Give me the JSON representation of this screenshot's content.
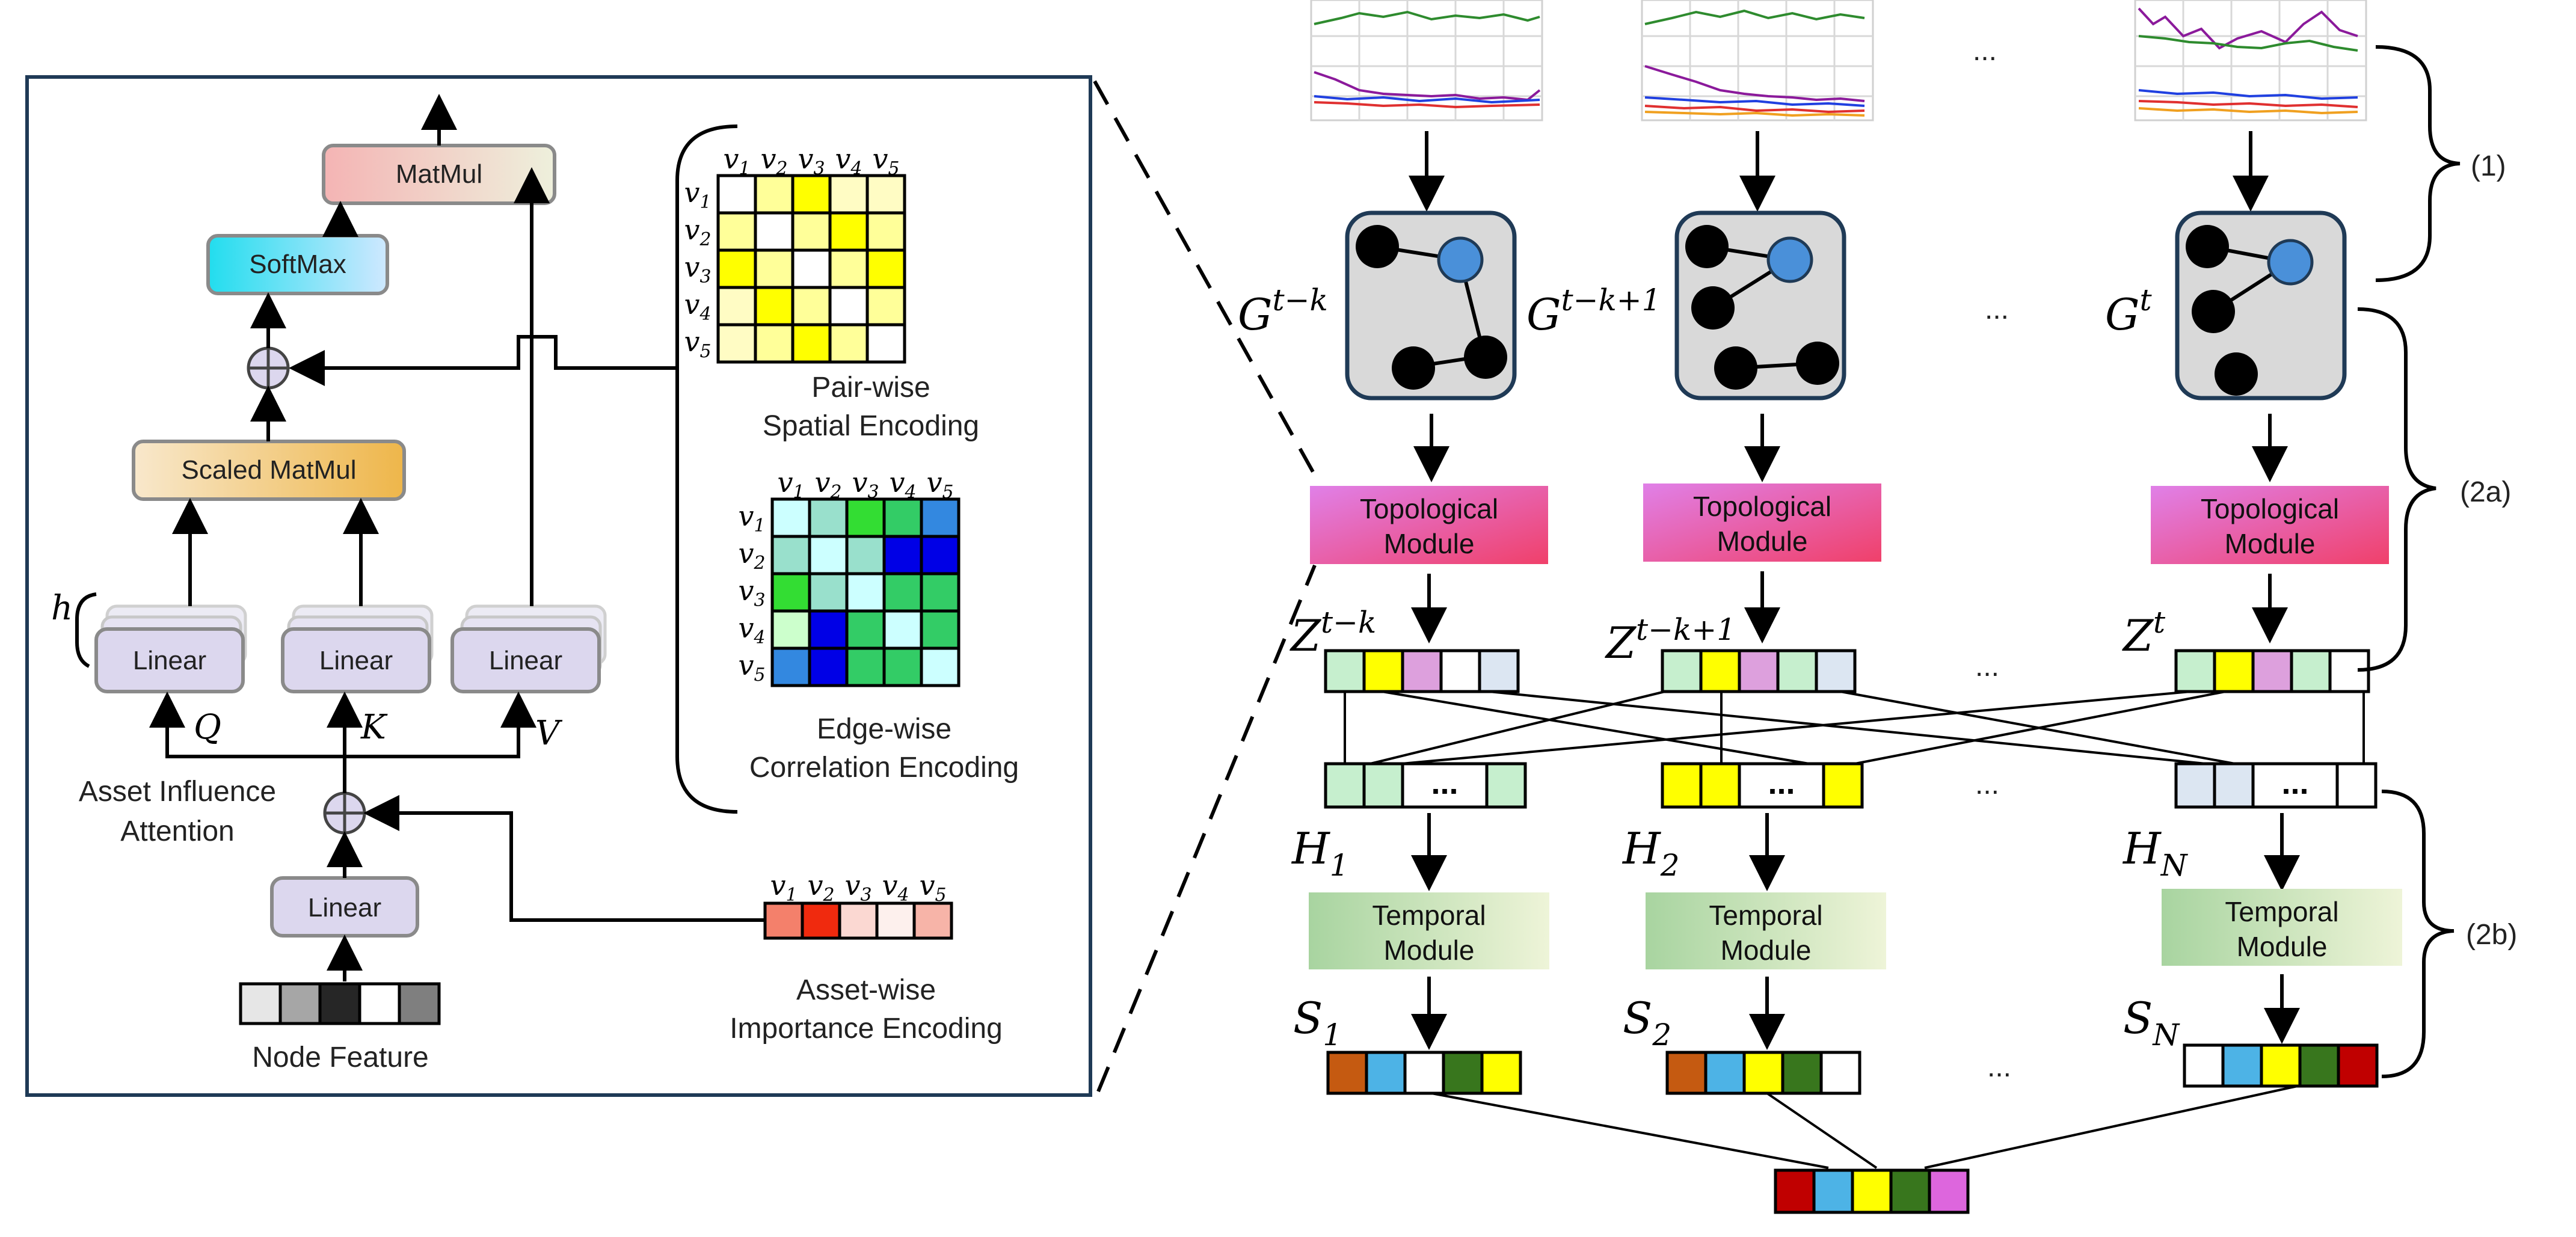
{
  "left_panel": {
    "blocks": {
      "matmul": "MatMul",
      "softmax": "SoftMax",
      "scaled_matmul": "Scaled MatMul",
      "linear": "Linear"
    },
    "symbols": {
      "h": "h",
      "q": "Q",
      "k": "K",
      "v": "V",
      "plus": "⊕"
    },
    "labels": {
      "attention_line1": "Asset Influence",
      "attention_line2": "Attention",
      "node_feature": "Node Feature",
      "pairwise_line1": "Pair-wise",
      "pairwise_line2": "Spatial Encoding",
      "edgewise_line1": "Edge-wise",
      "edgewise_line2": "Correlation Encoding",
      "assetwise_line1": "Asset-wise",
      "assetwise_line2": "Importance Encoding"
    },
    "node_labels": [
      "v1",
      "v2",
      "v3",
      "v4",
      "v5"
    ],
    "node_feature_colors": [
      "#e6e6e6",
      "#a6a6a6",
      "#262626",
      "#ffffff",
      "#7f7f7f"
    ],
    "asset_importance_colors": [
      "#f4806b",
      "#f02a0e",
      "#fbd8d2",
      "#fdf0ed",
      "#f7b4a8"
    ],
    "spatial_matrix": [
      [
        "#ffffff",
        "#ffff99",
        "#ffff00",
        "#fffcc4",
        "#fffcc4"
      ],
      [
        "#ffff99",
        "#ffffff",
        "#ffff99",
        "#ffff00",
        "#ffff99"
      ],
      [
        "#ffff00",
        "#ffff99",
        "#ffffff",
        "#ffff99",
        "#ffff00"
      ],
      [
        "#fffcc4",
        "#ffff00",
        "#ffff99",
        "#ffffff",
        "#ffff99"
      ],
      [
        "#fffcc4",
        "#ffff99",
        "#ffff00",
        "#ffff99",
        "#ffffff"
      ]
    ],
    "correlation_matrix": [
      [
        "#ccffff",
        "#99e0cc",
        "#33dd33",
        "#33cc66",
        "#3388e0"
      ],
      [
        "#99e0cc",
        "#ccffff",
        "#99e0cc",
        "#0000e6",
        "#0000e6"
      ],
      [
        "#33dd33",
        "#99e0cc",
        "#ccffff",
        "#33cc66",
        "#33cc66"
      ],
      [
        "#ccffcc",
        "#0000e6",
        "#33cc66",
        "#ccffff",
        "#33cc66"
      ],
      [
        "#3388e0",
        "#0000e6",
        "#33cc66",
        "#33cc66",
        "#ccffff"
      ]
    ]
  },
  "right_panel": {
    "graph_labels": [
      "G",
      "G",
      "G"
    ],
    "graph_sups": [
      "t−k",
      "t−k+1",
      "t"
    ],
    "z_labels": [
      "Z",
      "Z",
      "Z"
    ],
    "z_sups": [
      "t−k",
      "t−k+1",
      "t"
    ],
    "h_labels": [
      "H",
      "H",
      "H"
    ],
    "h_subs": [
      "1",
      "2",
      "N"
    ],
    "s_labels": [
      "S",
      "S",
      "S"
    ],
    "s_subs": [
      "1",
      "2",
      "N"
    ],
    "topological_line1": "Topological",
    "topological_line2": "Module",
    "temporal_line1": "Temporal",
    "temporal_line2": "Module",
    "ellipsis": "...",
    "cell_ellipsis": "...",
    "brackets": [
      "(1)",
      "(2a)",
      "(2b)"
    ],
    "z_vectors": [
      [
        "#c6efce",
        "#ffff00",
        "#dda0dd",
        "#ffffff",
        "#dce6f2"
      ],
      [
        "#c6efce",
        "#ffff00",
        "#dda0dd",
        "#c6efce",
        "#dce6f2"
      ],
      [
        "#c6efce",
        "#ffff00",
        "#dda0dd",
        "#c6efce",
        "#ffffff"
      ]
    ],
    "h_vectors": [
      [
        "#c6efce",
        "#c6efce",
        "#c6efce"
      ],
      [
        "#ffff00",
        "#ffff00",
        "#ffff00"
      ],
      [
        "#dce6f2",
        "#dce6f2",
        "#ffffff"
      ]
    ],
    "s_vectors": [
      [
        "#c55a11",
        "#4db3e6",
        "#ffffff",
        "#38761d",
        "#ffff00"
      ],
      [
        "#c55a11",
        "#4db3e6",
        "#ffff00",
        "#38761d",
        "#ffffff"
      ],
      [
        "#ffffff",
        "#4db3e6",
        "#ffff00",
        "#38761d",
        "#c00000"
      ]
    ],
    "output_vector": [
      "#c00000",
      "#4db3e6",
      "#ffff00",
      "#38761d",
      "#dd66dd"
    ]
  },
  "colors": {
    "matmul_fill": "#f5cccc",
    "softmax_fill": "#33ccdd",
    "scaled_matmul_fill": "#f2c47a",
    "linear_fill": "#dcd7ee",
    "topological_fill": "#e060a0",
    "temporal_fill": "#cfe4c0",
    "graph_fill": "#d9d9d9",
    "node_black": "#000000",
    "node_blue": "#4a90d9"
  }
}
